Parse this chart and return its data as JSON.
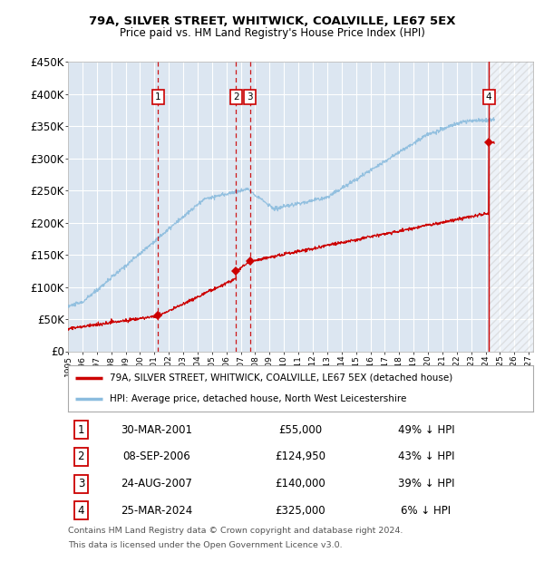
{
  "title1": "79A, SILVER STREET, WHITWICK, COALVILLE, LE67 5EX",
  "title2": "Price paid vs. HM Land Registry's House Price Index (HPI)",
  "ylim": [
    0,
    450000
  ],
  "ytick_values": [
    0,
    50000,
    100000,
    150000,
    200000,
    250000,
    300000,
    350000,
    400000,
    450000
  ],
  "ytick_labels": [
    "£0",
    "£50K",
    "£100K",
    "£150K",
    "£200K",
    "£250K",
    "£300K",
    "£350K",
    "£400K",
    "£450K"
  ],
  "hpi_color": "#8bbcde",
  "price_color": "#cc0000",
  "bg_color": "#dce6f1",
  "transactions": [
    {
      "num": 1,
      "date": "30-MAR-2001",
      "price_str": "£55,000",
      "price_val": 55000,
      "year": 2001.25,
      "pct": "49% ↓ HPI"
    },
    {
      "num": 2,
      "date": "08-SEP-2006",
      "price_str": "£124,950",
      "price_val": 124950,
      "year": 2006.67,
      "pct": "43% ↓ HPI"
    },
    {
      "num": 3,
      "date": "24-AUG-2007",
      "price_str": "£140,000",
      "price_val": 140000,
      "year": 2007.64,
      "pct": "39% ↓ HPI"
    },
    {
      "num": 4,
      "date": "25-MAR-2024",
      "price_str": "£325,000",
      "price_val": 325000,
      "year": 2024.23,
      "pct": "6% ↓ HPI"
    }
  ],
  "legend_label_price": "79A, SILVER STREET, WHITWICK, COALVILLE, LE67 5EX (detached house)",
  "legend_label_hpi": "HPI: Average price, detached house, North West Leicestershire",
  "footer1": "Contains HM Land Registry data © Crown copyright and database right 2024.",
  "footer2": "This data is licensed under the Open Government Licence v3.0.",
  "xlim_start": 1995,
  "xlim_end": 2027.3,
  "future_start": 2024.23
}
